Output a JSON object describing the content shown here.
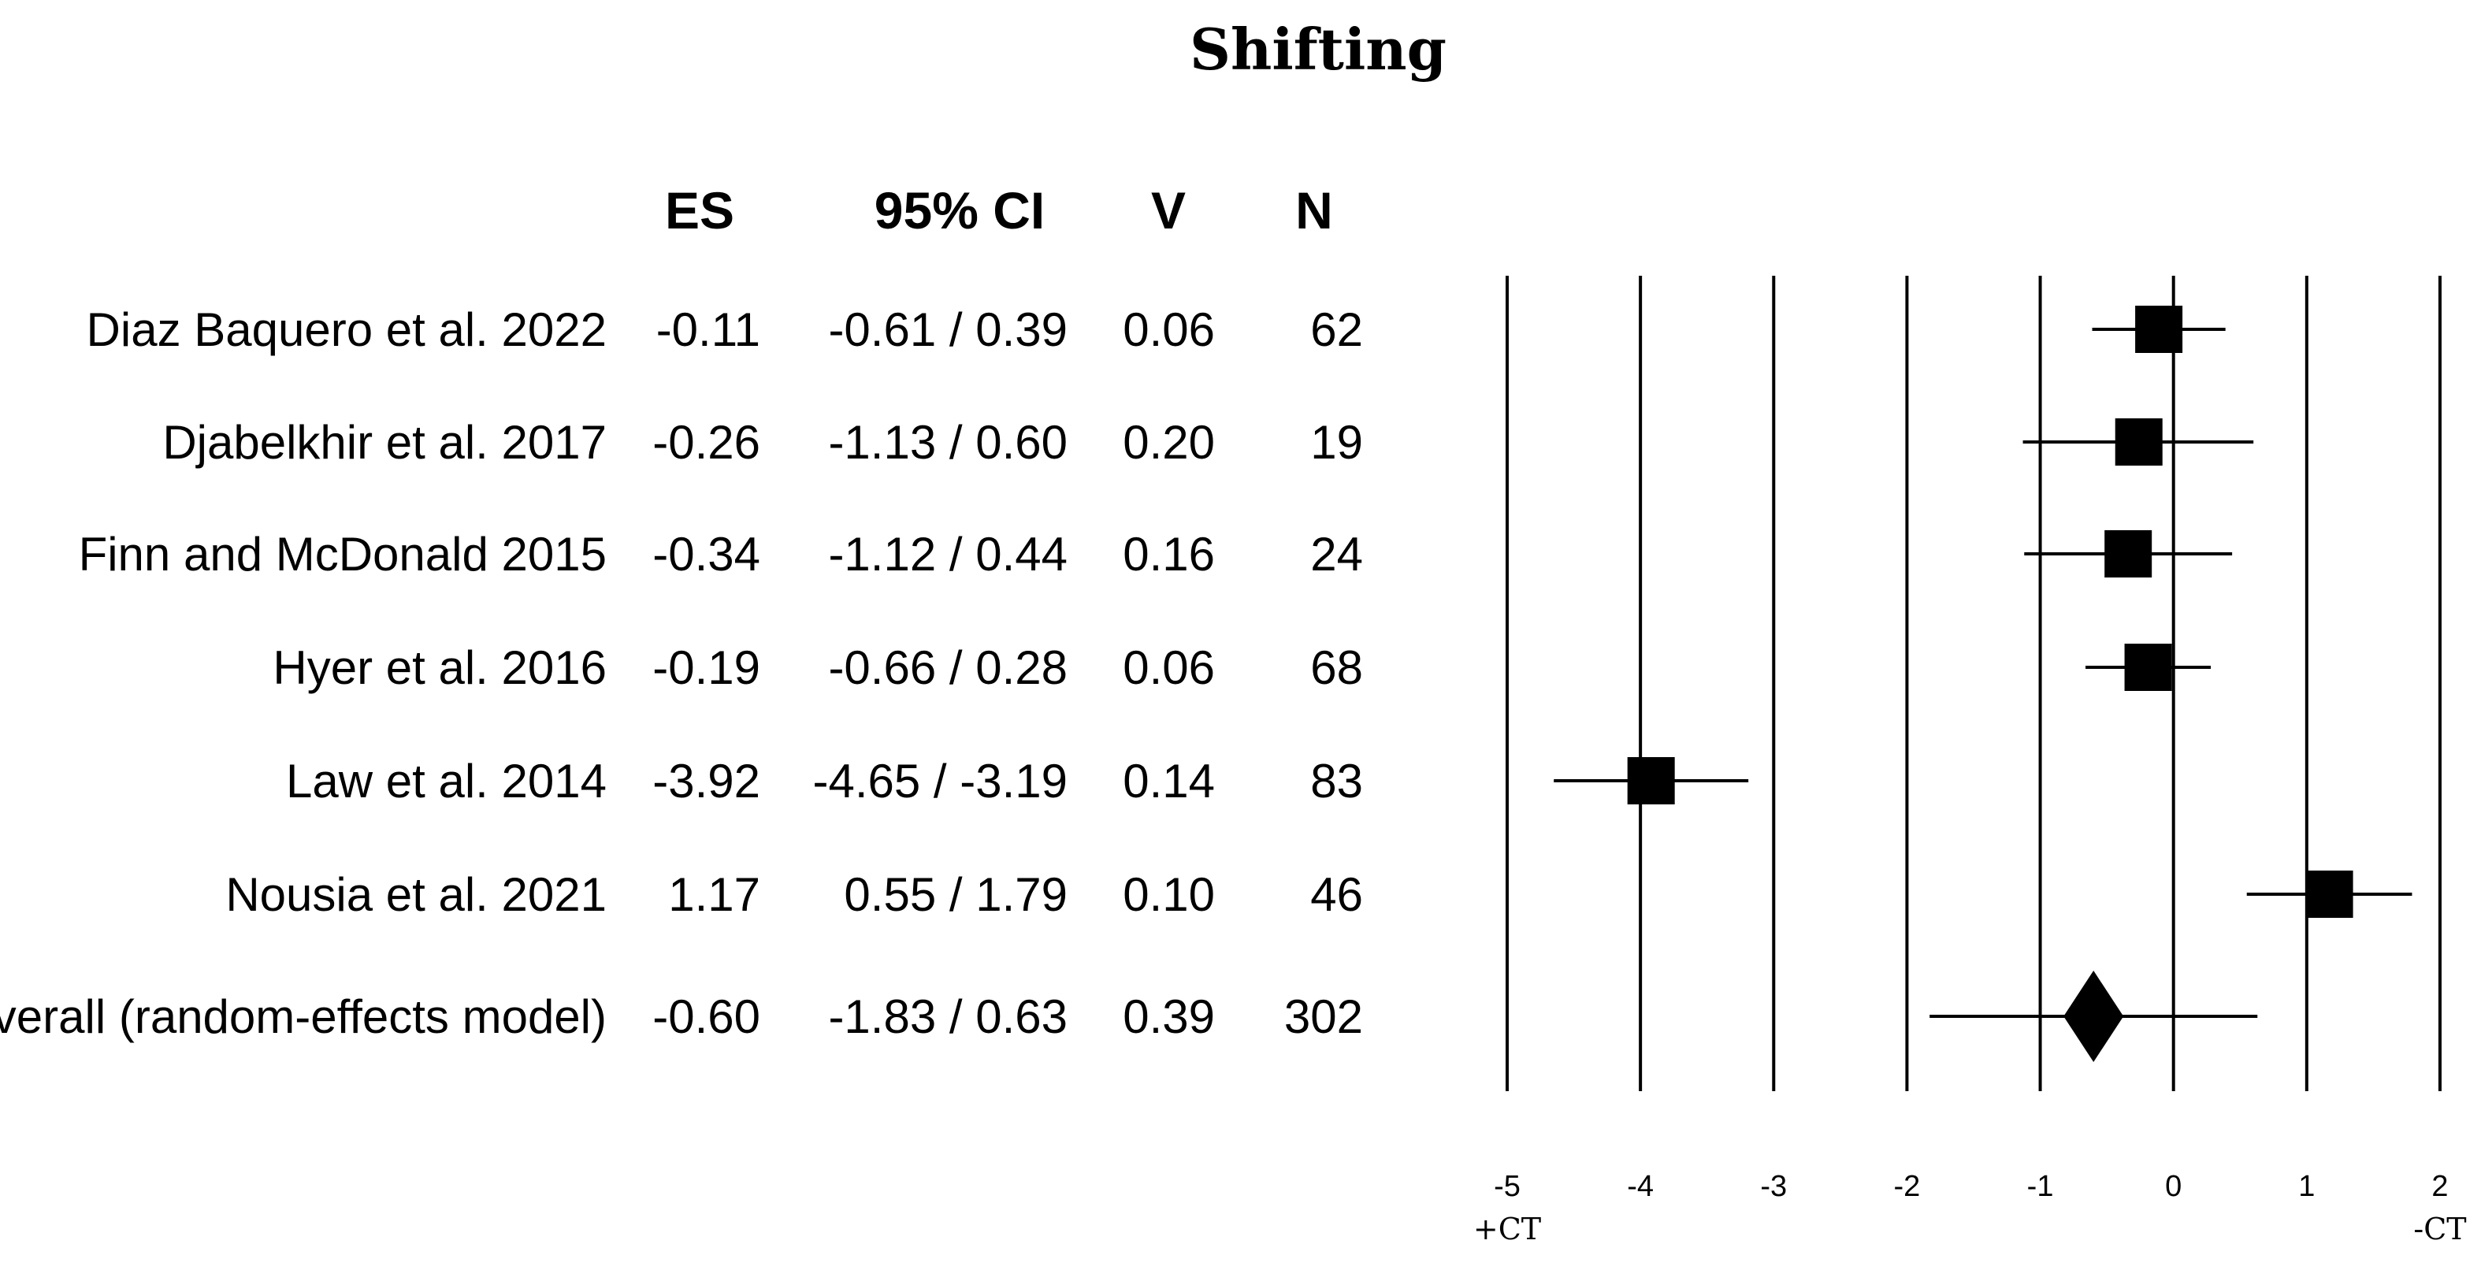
{
  "title": "Shifting",
  "columns": {
    "es": "ES",
    "ci": "95% CI",
    "v": "V",
    "n": "N"
  },
  "chart_data": {
    "type": "forest",
    "title": "Shifting",
    "xlim": [
      -5,
      2
    ],
    "xticks": [
      "-5",
      "-4",
      "-3",
      "-2",
      "-1",
      "0",
      "1",
      "2"
    ],
    "x_left_label": "+CT",
    "x_right_label": "-CT",
    "grid": true,
    "studies": [
      {
        "label": "Diaz Baquero et al. 2022",
        "es": -0.11,
        "lo": -0.61,
        "hi": 0.39,
        "es_text": "-0.11",
        "ci_text": "-0.61 / 0.39",
        "v": "0.06",
        "n": "62"
      },
      {
        "label": "Djabelkhir et al.  2017",
        "es": -0.26,
        "lo": -1.13,
        "hi": 0.6,
        "es_text": "-0.26",
        "ci_text": "-1.13 / 0.60",
        "v": "0.20",
        "n": "19"
      },
      {
        "label": "Finn and McDonald 2015",
        "es": -0.34,
        "lo": -1.12,
        "hi": 0.44,
        "es_text": "-0.34",
        "ci_text": "-1.12 / 0.44",
        "v": "0.16",
        "n": "24"
      },
      {
        "label": "Hyer et al. 2016",
        "es": -0.19,
        "lo": -0.66,
        "hi": 0.28,
        "es_text": "-0.19",
        "ci_text": "-0.66 / 0.28",
        "v": "0.06",
        "n": "68"
      },
      {
        "label": "Law et al. 2014",
        "es": -3.92,
        "lo": -4.65,
        "hi": -3.19,
        "es_text": "-3.92",
        "ci_text": "-4.65 / -3.19",
        "v": "0.14",
        "n": "83"
      },
      {
        "label": "Nousia et al. 2021",
        "es": 1.17,
        "lo": 0.55,
        "hi": 1.79,
        "es_text": "1.17",
        "ci_text": "0.55 / 1.79",
        "v": "0.10",
        "n": "46"
      }
    ],
    "overall": {
      "label": "Overall (random-effects model)",
      "es": -0.6,
      "lo": -1.83,
      "hi": 0.63,
      "es_text": "-0.60",
      "ci_text": "-1.83 / 0.63",
      "v": "0.39",
      "n": "302"
    }
  }
}
